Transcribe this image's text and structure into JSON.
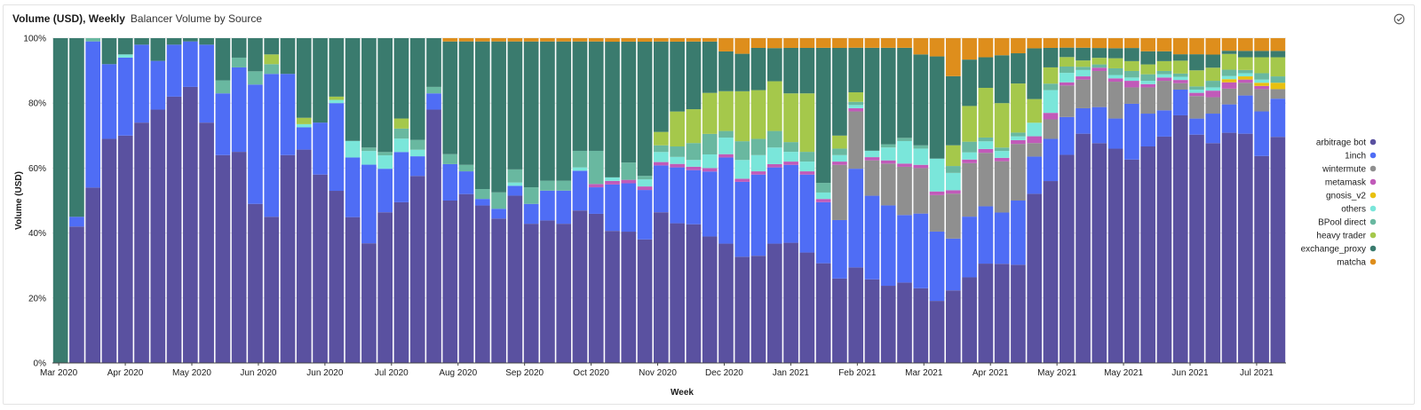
{
  "header": {
    "title": "Volume (USD), Weekly",
    "subtitle": "Balancer Volume by Source"
  },
  "chart_data": {
    "type": "bar",
    "stacked": true,
    "normalized": true,
    "title": "Balancer Volume by Source",
    "xlabel": "Week",
    "ylabel": "Volume (USD)",
    "ylim": [
      0,
      100
    ],
    "yticks": [
      "0%",
      "20%",
      "40%",
      "60%",
      "80%",
      "100%"
    ],
    "xtick_labels": [
      "Mar 2020",
      "Apr 2020",
      "May 2020",
      "Jun 2020",
      "Jun 2020",
      "Jul 2020",
      "Aug 2020",
      "Sep 2020",
      "Oct 2020",
      "Nov 2020",
      "Dec 2020",
      "Jan 2021",
      "Feb 2021",
      "Mar 2021",
      "Apr 2021",
      "May 2021",
      "May 2021",
      "Jun 2021",
      "Jul 2021"
    ],
    "legend_position": "right",
    "series": [
      {
        "name": "arbitrage bot",
        "color": "#5a51a0",
        "values": [
          0,
          42,
          54,
          69,
          70,
          74,
          78,
          82,
          85,
          74,
          64,
          65,
          48,
          45,
          64,
          67,
          58,
          53,
          44,
          35,
          45,
          48,
          57,
          78,
          49,
          52,
          48,
          44,
          51,
          42,
          43,
          42,
          46,
          45,
          37,
          38,
          35,
          45,
          40,
          41,
          37,
          36,
          34,
          33,
          36,
          37,
          34,
          31,
          26,
          30,
          26,
          24,
          25,
          23,
          17,
          21,
          24,
          26,
          29,
          26,
          50,
          56,
          66,
          72,
          67,
          64,
          62,
          66,
          69,
          77,
          71,
          67,
          73,
          72,
          65,
          71
        ]
      },
      {
        "name": "1inch",
        "color": "#4f6df5",
        "values": [
          0,
          3,
          45,
          23,
          24,
          24,
          15,
          16,
          14,
          24,
          19,
          26,
          36,
          44,
          25,
          7,
          16,
          27,
          18,
          23,
          13,
          15,
          6,
          5,
          11,
          7,
          2,
          3,
          3,
          6,
          9,
          10,
          12,
          8,
          13,
          14,
          14,
          14,
          16,
          16,
          19,
          26,
          24,
          25,
          23,
          24,
          24,
          19,
          18,
          31,
          26,
          25,
          21,
          23,
          19,
          15,
          17,
          15,
          15,
          17,
          11,
          13,
          12,
          8,
          11,
          9,
          17,
          10,
          8,
          8,
          5,
          9,
          9,
          12,
          14,
          12
        ]
      },
      {
        "name": "wintermute",
        "color": "#8f8f8f",
        "values": [
          0,
          0,
          0,
          0,
          0,
          0,
          0,
          0,
          0,
          0,
          0,
          0,
          0,
          0,
          0,
          0,
          0,
          0,
          0,
          0,
          0,
          0,
          0,
          0,
          0,
          0,
          0,
          0,
          0,
          0,
          0,
          0,
          0,
          0,
          0,
          0,
          0,
          0,
          0,
          0,
          0,
          0,
          0,
          0,
          0,
          0,
          0,
          0,
          17,
          18,
          11,
          13,
          15,
          14,
          10,
          13,
          15,
          14,
          15,
          15,
          4,
          6,
          10,
          9,
          11,
          11,
          5,
          8,
          9,
          2,
          7,
          5,
          5,
          4,
          7,
          3
        ]
      },
      {
        "name": "metamask",
        "color": "#c15ab9",
        "values": [
          0,
          0,
          0,
          0,
          0,
          0,
          0,
          0,
          0,
          0,
          0,
          0,
          0,
          0,
          0,
          0,
          0,
          0,
          0,
          0,
          0,
          0,
          0,
          0,
          0,
          0,
          0,
          0,
          0,
          0,
          0,
          0,
          0,
          1,
          1,
          1,
          1,
          1,
          1,
          1,
          1,
          1,
          1,
          1,
          1,
          1,
          1,
          1,
          1,
          1,
          1,
          1,
          1,
          1,
          1,
          1,
          1,
          1,
          1,
          1,
          2,
          2,
          1,
          1,
          1,
          1,
          2,
          1,
          1,
          1,
          1,
          2,
          2,
          1,
          1,
          0
        ]
      },
      {
        "name": "gnosis_v2",
        "color": "#e8c010",
        "values": [
          0,
          0,
          0,
          0,
          0,
          0,
          0,
          0,
          0,
          0,
          0,
          0,
          0,
          0,
          0,
          0,
          0,
          0,
          0,
          0,
          0,
          0,
          0,
          0,
          0,
          0,
          0,
          0,
          0,
          0,
          0,
          0,
          0,
          0,
          0,
          0,
          0,
          0,
          0,
          0,
          0,
          0,
          0,
          0,
          0,
          0,
          0,
          0,
          0,
          0,
          0,
          0,
          0,
          0,
          0,
          0,
          0,
          0,
          0,
          0,
          0,
          0,
          0,
          0,
          0,
          0,
          0,
          0,
          0,
          0,
          0,
          0,
          1,
          1,
          1,
          2
        ]
      },
      {
        "name": "others",
        "color": "#7ae6da",
        "values": [
          0,
          0,
          0,
          0,
          1,
          0,
          0,
          0,
          0,
          0,
          0,
          0,
          0,
          0,
          0,
          1,
          0,
          1,
          5,
          4,
          4,
          4,
          2,
          0,
          0,
          0,
          0,
          0,
          1,
          0,
          0,
          0,
          1,
          0,
          1,
          0,
          2,
          3,
          2,
          2,
          4,
          5,
          6,
          5,
          5,
          3,
          3,
          2,
          2,
          1,
          2,
          4,
          7,
          5,
          9,
          5,
          2,
          2,
          2,
          1,
          4,
          7,
          3,
          2,
          0,
          1,
          1,
          1,
          1,
          1,
          1,
          1,
          1,
          1,
          1,
          0
        ]
      },
      {
        "name": "BPool direct",
        "color": "#69b8a0",
        "values": [
          0,
          0,
          1,
          0,
          0,
          0,
          0,
          0,
          0,
          0,
          4,
          3,
          4,
          3,
          0,
          0,
          0,
          0,
          0,
          1,
          1,
          3,
          3,
          2,
          3,
          2,
          3,
          5,
          4,
          5,
          3,
          3,
          5,
          10,
          0,
          5,
          1,
          2,
          3,
          5,
          6,
          2,
          6,
          5,
          5,
          3,
          3,
          3,
          2,
          1,
          0,
          1,
          1,
          1,
          0,
          2,
          3,
          1,
          1,
          1,
          0,
          2,
          2,
          1,
          1,
          2,
          2,
          2,
          1,
          1,
          1,
          2,
          2,
          1,
          2,
          2
        ]
      },
      {
        "name": "heavy trader",
        "color": "#a5c84b",
        "values": [
          0,
          0,
          0,
          0,
          0,
          0,
          0,
          0,
          0,
          0,
          0,
          0,
          0,
          3,
          0,
          2,
          0,
          1,
          0,
          0,
          0,
          3,
          0,
          0,
          0,
          0,
          0,
          0,
          0,
          0,
          0,
          0,
          0,
          0,
          0,
          0,
          0,
          4,
          10,
          10,
          12,
          12,
          16,
          15,
          15,
          15,
          18,
          0,
          4,
          3,
          0,
          0,
          0,
          0,
          0,
          6,
          10,
          13,
          13,
          13,
          7,
          5,
          3,
          2,
          2,
          3,
          3,
          3,
          3,
          4,
          5,
          4,
          5,
          4,
          5,
          6
        ]
      },
      {
        "name": "exchange_proxy",
        "color": "#3a7b6e",
        "values": [
          100,
          55,
          0,
          8,
          5,
          2,
          7,
          2,
          1,
          2,
          13,
          6,
          10,
          5,
          11,
          25,
          26,
          18,
          31,
          32,
          34,
          24,
          31,
          15,
          34,
          38,
          45,
          46,
          39,
          44,
          42,
          42,
          33,
          33,
          38,
          35,
          38,
          27,
          20,
          20,
          15,
          12,
          12,
          13,
          10,
          14,
          14,
          42,
          27,
          14,
          32,
          30,
          28,
          28,
          28,
          20,
          13,
          8,
          14,
          8,
          15,
          6,
          3,
          4,
          3,
          3,
          4,
          4,
          3,
          2,
          5,
          4,
          1,
          2,
          2,
          2
        ]
      },
      {
        "name": "matcha",
        "color": "#de8e1c",
        "values": [
          0,
          0,
          0,
          0,
          0,
          0,
          0,
          0,
          0,
          0,
          0,
          0,
          0,
          0,
          0,
          0,
          0,
          0,
          0,
          0,
          0,
          0,
          0,
          0,
          1,
          1,
          1,
          1,
          1,
          1,
          1,
          1,
          1,
          1,
          1,
          1,
          1,
          1,
          1,
          1,
          1,
          4,
          5,
          3,
          3,
          3,
          3,
          3,
          3,
          3,
          3,
          3,
          3,
          5,
          5,
          11,
          6,
          5,
          5,
          4,
          3,
          3,
          3,
          3,
          3,
          3,
          3,
          4,
          4,
          5,
          5,
          5,
          4,
          4,
          4,
          4
        ]
      }
    ]
  }
}
